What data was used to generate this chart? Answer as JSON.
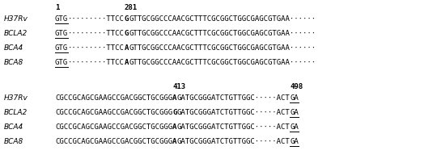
{
  "background_color": "#ffffff",
  "figsize": [
    5.4,
    2.03
  ],
  "dpi": 100,
  "section1_rows": [
    {
      "label": "H37Rv",
      "segments": [
        {
          "text": "GTG",
          "underline": true,
          "bold": false
        },
        {
          "text": "·········TTCC",
          "underline": false,
          "bold": false
        },
        {
          "text": "G",
          "underline": false,
          "bold": true
        },
        {
          "text": "GTTGCGGCCCAACGCTTTCGCGGCTGGCGAGCGTGAA······",
          "underline": false,
          "bold": false
        }
      ]
    },
    {
      "label": "BCLA2",
      "segments": [
        {
          "text": "GTG",
          "underline": true,
          "bold": false
        },
        {
          "text": "·········TTCC",
          "underline": false,
          "bold": false
        },
        {
          "text": "G",
          "underline": false,
          "bold": true
        },
        {
          "text": "GTTGCGGCCCAACGCTTTCGCGGCTGGCGAGCGTGAA······",
          "underline": false,
          "bold": false
        }
      ]
    },
    {
      "label": "BCA4",
      "segments": [
        {
          "text": "GTG",
          "underline": true,
          "bold": false
        },
        {
          "text": "·········TTCC",
          "underline": false,
          "bold": false
        },
        {
          "text": "A",
          "underline": false,
          "bold": true
        },
        {
          "text": "GTTGCGGCCCAACGCTTTCGCGGCTGGCGAGCGTGAA······",
          "underline": false,
          "bold": false
        }
      ]
    },
    {
      "label": "BCA8",
      "segments": [
        {
          "text": "GTG",
          "underline": true,
          "bold": false
        },
        {
          "text": "·········TTCC",
          "underline": false,
          "bold": false
        },
        {
          "text": "A",
          "underline": false,
          "bold": true
        },
        {
          "text": "GTTGCGGCCCAACGCTTTCGCGGCTGGCGAGCGTGAA······",
          "underline": false,
          "bold": false
        }
      ]
    }
  ],
  "section2_rows": [
    {
      "label": "H37Rv",
      "segments": [
        {
          "text": "CGCCGCAGCGAAGCCGACGGCTGCGGG",
          "underline": false,
          "bold": false
        },
        {
          "text": "A",
          "underline": false,
          "bold": true
        },
        {
          "text": "GATGCGGGATCTGTTGGC·····ACT",
          "underline": false,
          "bold": false
        },
        {
          "text": "GA",
          "underline": true,
          "bold": false
        }
      ]
    },
    {
      "label": "BCLA2",
      "segments": [
        {
          "text": "CGCCGCAGCGAAGCCGACGGCTGCGGG",
          "underline": false,
          "bold": false
        },
        {
          "text": "G",
          "underline": false,
          "bold": true
        },
        {
          "text": "GATGCGGGATCTGTTGGC·····ACT",
          "underline": false,
          "bold": false
        },
        {
          "text": "GA",
          "underline": true,
          "bold": false
        }
      ]
    },
    {
      "label": "BCA4",
      "segments": [
        {
          "text": "CGCCGCAGCGAAGCCGACGGCTGCGGG",
          "underline": false,
          "bold": false
        },
        {
          "text": "A",
          "underline": false,
          "bold": true
        },
        {
          "text": "GATGCGGGATCTGTTGGC·····ACT",
          "underline": false,
          "bold": false
        },
        {
          "text": "GA",
          "underline": true,
          "bold": false
        }
      ]
    },
    {
      "label": "BCA8",
      "segments": [
        {
          "text": "CGCCGCAGCGAAGCCGACGGCTGCGGG",
          "underline": false,
          "bold": false
        },
        {
          "text": "A",
          "underline": false,
          "bold": true
        },
        {
          "text": "GATGCGGGATCTGTTGGC·····ACT",
          "underline": false,
          "bold": false
        },
        {
          "text": "GA",
          "underline": true,
          "bold": false
        }
      ]
    }
  ],
  "seq_font_size": 6.5,
  "label_font_size": 6.5,
  "marker_font_size": 6.5,
  "text_color": "#000000",
  "seq_font_family": "DejaVu Sans Mono",
  "label_font_family": "DejaVu Sans"
}
